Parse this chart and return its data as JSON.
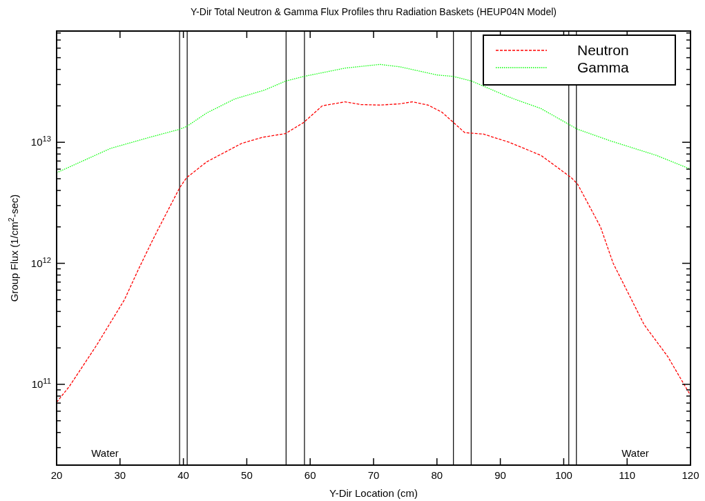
{
  "chart_data": {
    "type": "line",
    "title": "Y-Dir Total Neutron & Gamma Flux Profiles  thru Radiation Baskets (HEUP04N Model)",
    "xlabel": "Y-Dir Location (cm)",
    "ylabel": "Group Flux (1/cm$^{2}$-sec)",
    "log": "y",
    "legend": "top right",
    "grid": false,
    "xlim": [
      20,
      120
    ],
    "xticks": [
      20,
      30,
      40,
      50,
      60,
      70,
      80,
      90,
      100,
      110,
      120
    ],
    "ylim": [
      21500000000.0,
      83000000000000.0
    ],
    "yticks": [
      {
        "value": 30000000000.0,
        "label": null
      },
      {
        "value": 40000000000.0,
        "label": null
      },
      {
        "value": 50000000000.0,
        "label": null
      },
      {
        "value": 60000000000.0,
        "label": null
      },
      {
        "value": 70000000000.0,
        "label": null
      },
      {
        "value": 80000000000.0,
        "label": null
      },
      {
        "value": 90000000000.0,
        "label": null
      },
      {
        "value": 100000000000.0,
        "label": "10$^{11}$"
      },
      {
        "value": 200000000000.0,
        "label": null
      },
      {
        "value": 300000000000.0,
        "label": null
      },
      {
        "value": 400000000000.0,
        "label": null
      },
      {
        "value": 500000000000.0,
        "label": null
      },
      {
        "value": 600000000000.0,
        "label": null
      },
      {
        "value": 700000000000.0,
        "label": null
      },
      {
        "value": 800000000000.0,
        "label": null
      },
      {
        "value": 900000000000.0,
        "label": null
      },
      {
        "value": 1000000000000.0,
        "label": "10$^{12}$"
      },
      {
        "value": 2000000000000.0,
        "label": null
      },
      {
        "value": 3000000000000.0,
        "label": null
      },
      {
        "value": 4000000000000.0,
        "label": null
      },
      {
        "value": 5000000000000.0,
        "label": null
      },
      {
        "value": 6000000000000.0,
        "label": null
      },
      {
        "value": 7000000000000.0,
        "label": null
      },
      {
        "value": 8000000000000.0,
        "label": null
      },
      {
        "value": 9000000000000.0,
        "label": null
      },
      {
        "value": 10000000000000.0,
        "label": "10$^{13}$"
      },
      {
        "value": 20000000000000.0,
        "label": null
      },
      {
        "value": 30000000000000.0,
        "label": null
      },
      {
        "value": 40000000000000.0,
        "label": null
      },
      {
        "value": 50000000000000.0,
        "label": null
      },
      {
        "value": 60000000000000.0,
        "label": null
      },
      {
        "value": 70000000000000.0,
        "label": null
      },
      {
        "value": 80000000000000.0,
        "label": null
      }
    ],
    "series": [
      {
        "name": "Neutron",
        "color": "#ff0000",
        "line_style": "dashed",
        "x": [
          20,
          22,
          26.3,
          30.7,
          32.9,
          35,
          36.1,
          39.4,
          40.5,
          43.7,
          49.2,
          52.5,
          56.1,
          59,
          61.9,
          65.5,
          68,
          71,
          74.2,
          76.1,
          78.6,
          80.8,
          82.4,
          84.4,
          87.3,
          91.4,
          96.4,
          101.2,
          102.2,
          105.8,
          107.8,
          112.7,
          116.4,
          120
        ],
        "values": [
          71000000000.0,
          96000000000.0,
          210000000000.0,
          500000000000.0,
          890000000000.0,
          1500000000000.0,
          1950000000000.0,
          4200000000000.0,
          5100000000000.0,
          6900000000000.0,
          9800000000000.0,
          11000000000000.0,
          11800000000000.0,
          14600000000000.0,
          20000000000000.0,
          21600000000000.0,
          20500000000000.0,
          20300000000000.0,
          20800000000000.0,
          21600000000000.0,
          20300000000000.0,
          17700000000000.0,
          14900000000000.0,
          12000000000000.0,
          11700000000000.0,
          10000000000000.0,
          7800000000000.0,
          5100000000000.0,
          4500000000000.0,
          2000000000000.0,
          1000000000000.0,
          310000000000.0,
          170000000000.0,
          81000000000.0
        ]
      },
      {
        "name": "Gamma",
        "color": "#00ff00",
        "line_style": "dotted",
        "x": [
          20,
          28.5,
          34.7,
          39.4,
          40.5,
          43.7,
          48.1,
          52.8,
          56.1,
          59,
          65.5,
          71,
          74.2,
          80,
          82.6,
          85.5,
          91.4,
          96.4,
          101.2,
          102.2,
          107.3,
          114.6,
          120
        ],
        "values": [
          5600000000000.0,
          8900000000000.0,
          11000000000000.0,
          12800000000000.0,
          13500000000000.0,
          17500000000000.0,
          22800000000000.0,
          27000000000000.0,
          32000000000000.0,
          35000000000000.0,
          41000000000000.0,
          44000000000000.0,
          42000000000000.0,
          36000000000000.0,
          35000000000000.0,
          32000000000000.0,
          23600000000000.0,
          19000000000000.0,
          13700000000000.0,
          12800000000000.0,
          10300000000000.0,
          7800000000000.0,
          6000000000000.0
        ]
      }
    ],
    "ref_lines": [
      {
        "axis": "x",
        "value": 39.4,
        "color": "#000000"
      },
      {
        "axis": "x",
        "value": 40.6,
        "color": "#000000"
      },
      {
        "axis": "x",
        "value": 56.2,
        "color": "#000000"
      },
      {
        "axis": "x",
        "value": 59.1,
        "color": "#000000"
      },
      {
        "axis": "x",
        "value": 82.6,
        "color": "#000000"
      },
      {
        "axis": "x",
        "value": 85.4,
        "color": "#000000"
      },
      {
        "axis": "x",
        "value": 100.8,
        "color": "#000000"
      },
      {
        "axis": "x",
        "value": 102.0,
        "color": "#000000"
      }
    ],
    "annotations": [
      "Water",
      "Water"
    ]
  }
}
